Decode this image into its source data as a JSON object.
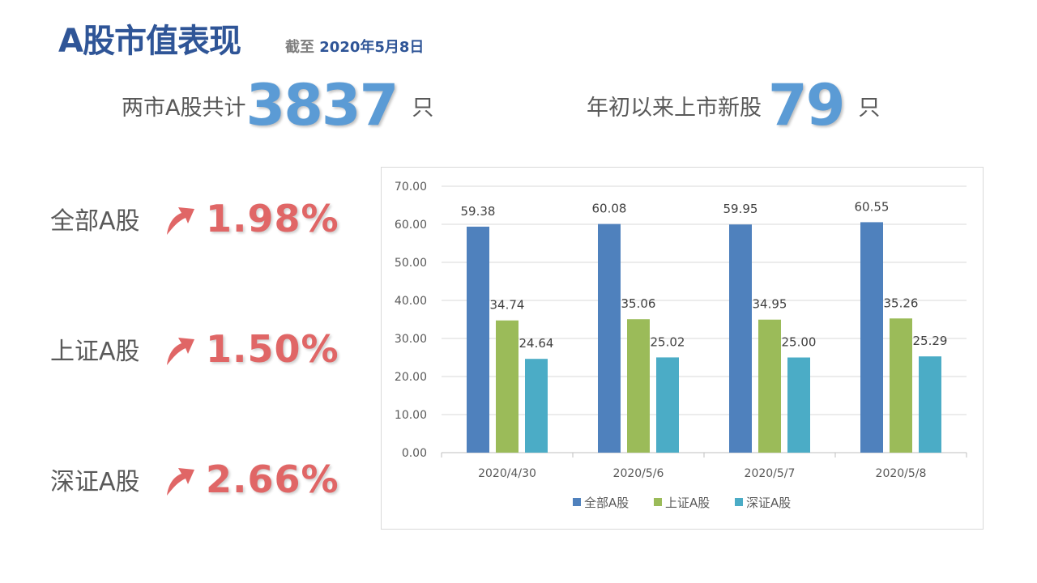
{
  "header": {
    "title": "A股市值表现",
    "as_of_label": "截至",
    "as_of_date": "2020年5月8日"
  },
  "stats": {
    "total": {
      "label": "两市A股共计",
      "value": "3837",
      "unit": "只"
    },
    "new_listings": {
      "label": "年初以来上市新股",
      "value": "79",
      "unit": "只"
    }
  },
  "performance": [
    {
      "label": "全部A股",
      "change": "1.98%",
      "direction": "up"
    },
    {
      "label": "上证A股",
      "change": "1.50%",
      "direction": "up"
    },
    {
      "label": "深证A股",
      "change": "2.66%",
      "direction": "up"
    }
  ],
  "colors": {
    "accent": "#5b9bd5",
    "title": "#2f5597",
    "up": "#e06666"
  },
  "chart_data": {
    "type": "bar",
    "title": "",
    "xlabel": "",
    "ylabel": "",
    "categories": [
      "2020/4/30",
      "2020/5/6",
      "2020/5/7",
      "2020/5/8"
    ],
    "series": [
      {
        "name": "全部A股",
        "color": "#4f81bd",
        "values": [
          59.38,
          60.08,
          59.95,
          60.55
        ]
      },
      {
        "name": "上证A股",
        "color": "#9bbb59",
        "values": [
          34.74,
          35.06,
          34.95,
          35.26
        ]
      },
      {
        "name": "深证A股",
        "color": "#4bacc6",
        "values": [
          24.64,
          25.02,
          25.0,
          25.29
        ]
      }
    ],
    "ylim": [
      0,
      70
    ],
    "yticks": [
      "0.00",
      "10.00",
      "20.00",
      "30.00",
      "40.00",
      "50.00",
      "60.00",
      "70.00"
    ],
    "grid": true,
    "legend": "bottom"
  }
}
